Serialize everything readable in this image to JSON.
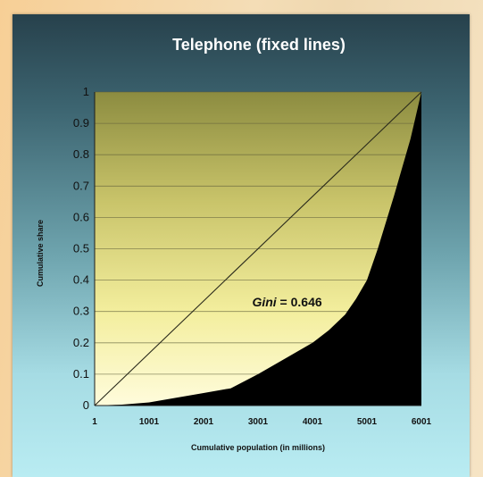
{
  "chart_data": {
    "type": "area",
    "title": "Telephone (fixed lines)",
    "xlabel": "Cumulative population (in millions)",
    "ylabel": "Cumulative share",
    "x_ticks": [
      "1",
      "1001",
      "2001",
      "3001",
      "4001",
      "5001",
      "6001"
    ],
    "y_ticks": [
      "0",
      "0.1",
      "0.2",
      "0.3",
      "0.4",
      "0.5",
      "0.6",
      "0.7",
      "0.8",
      "0.9",
      "1"
    ],
    "xlim": [
      1,
      6001
    ],
    "ylim": [
      0,
      1
    ],
    "grid": true,
    "series": [
      {
        "x": [
          1,
          500,
          1001,
          1500,
          2001,
          2500,
          3001,
          3500,
          4001,
          4300,
          4600,
          4800,
          5001,
          5200,
          5500,
          5800,
          6001
        ],
        "values": [
          0,
          0.003,
          0.01,
          0.025,
          0.04,
          0.055,
          0.1,
          0.15,
          0.2,
          0.24,
          0.29,
          0.34,
          0.4,
          0.5,
          0.67,
          0.85,
          1.0
        ]
      },
      {
        "x": [
          1,
          6001
        ],
        "values": [
          0,
          1
        ]
      }
    ],
    "annotation": {
      "label": "Gini",
      "text": " = 0.646",
      "x": 3500,
      "y": 0.33
    }
  }
}
